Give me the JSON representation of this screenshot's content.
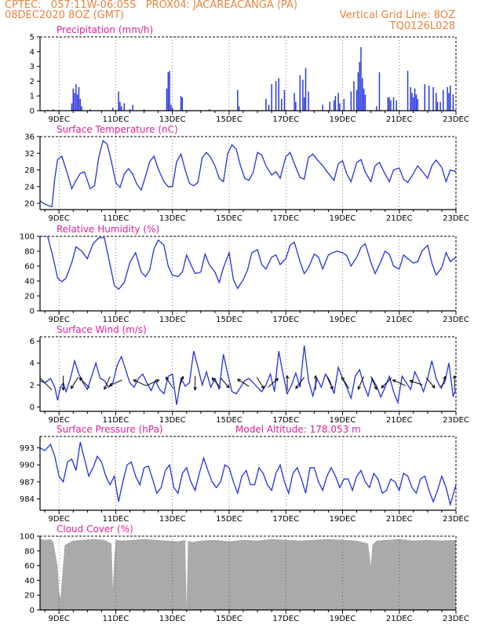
{
  "header": {
    "line1": "CPTEC:   057:11W-06:05S   PROX04: JACAREACANGA (PA)",
    "line2": "08DEC2020 8OZ (GMT)",
    "right2": "Vertical Grid Line: 8OZ",
    "right3": "TQ0126L028"
  },
  "colors": {
    "series": "#2233dd",
    "title": "#e0209c",
    "header": "#e8823c",
    "cloud": "#aaaaaa",
    "grid": "#444444"
  },
  "x_ticks": [
    "9DEC",
    "11DEC",
    "13DEC",
    "15DEC",
    "17DEC",
    "19DEC",
    "21DEC",
    "23DEC"
  ],
  "chart_data": [
    {
      "type": "bar",
      "title": "Precipitation (mm/h)",
      "x_range": [
        8.33,
        23.0
      ],
      "ylim": [
        0,
        5
      ],
      "yticks": [
        0,
        1,
        2,
        3,
        4,
        5
      ],
      "bar_width": 0.04,
      "x": [
        8.6,
        8.8,
        9.45,
        9.5,
        9.55,
        9.6,
        9.65,
        9.7,
        9.75,
        9.8,
        10.1,
        10.9,
        11.1,
        11.15,
        11.2,
        11.3,
        11.5,
        11.6,
        12.0,
        12.8,
        12.85,
        12.9,
        12.95,
        13.0,
        13.3,
        13.35,
        14.3,
        15.3,
        15.35,
        16.3,
        16.4,
        16.5,
        16.65,
        16.75,
        16.85,
        16.95,
        17.3,
        17.35,
        17.5,
        17.6,
        17.65,
        17.7,
        17.8,
        18.3,
        18.55,
        18.7,
        18.75,
        18.85,
        18.9,
        19.05,
        19.3,
        19.4,
        19.5,
        19.55,
        19.6,
        19.65,
        19.7,
        19.75,
        19.8,
        20.2,
        20.3,
        20.6,
        20.65,
        20.7,
        20.8,
        20.9,
        21.3,
        21.4,
        21.45,
        21.5,
        21.55,
        21.6,
        21.65,
        21.9,
        22.05,
        22.2,
        22.3,
        22.35,
        22.45,
        22.55,
        22.7,
        22.75,
        22.8,
        22.9
      ],
      "values": [
        0.05,
        0.1,
        0.5,
        1.5,
        1.2,
        1.8,
        1.1,
        1.6,
        0.8,
        0.3,
        0.1,
        0.2,
        1.3,
        0.6,
        0.3,
        0.5,
        0.1,
        0.4,
        0.1,
        1.5,
        2.6,
        2.7,
        0.4,
        0.2,
        1.0,
        0.9,
        0.1,
        1.4,
        0.3,
        0.8,
        0.4,
        1.8,
        2.0,
        2.2,
        0.8,
        1.4,
        1.2,
        0.6,
        2.4,
        2.1,
        0.9,
        2.9,
        1.3,
        0.4,
        0.6,
        0.7,
        1.0,
        1.2,
        0.5,
        0.8,
        1.3,
        2.0,
        1.4,
        2.6,
        3.3,
        4.3,
        2.2,
        1.5,
        1.1,
        0.3,
        2.6,
        0.9,
        0.9,
        0.7,
        0.9,
        0.7,
        2.7,
        1.6,
        1.2,
        0.9,
        1.5,
        1.1,
        0.8,
        1.8,
        1.7,
        1.6,
        1.2,
        0.6,
        0.6,
        1.4,
        1.6,
        1.2,
        1.7,
        1.1
      ]
    },
    {
      "type": "line",
      "title": "Surface Temperature (nC)",
      "x_range": [
        8.33,
        23.0
      ],
      "ylim": [
        18.5,
        36
      ],
      "yticks": [
        20,
        24,
        28,
        32,
        36
      ],
      "x": [
        8.33,
        8.45,
        8.6,
        8.75,
        8.85,
        8.95,
        9.1,
        9.3,
        9.45,
        9.6,
        9.75,
        9.9,
        10.1,
        10.25,
        10.4,
        10.55,
        10.7,
        10.85,
        11.0,
        11.15,
        11.3,
        11.45,
        11.6,
        11.75,
        11.9,
        12.05,
        12.2,
        12.35,
        12.5,
        12.7,
        12.85,
        13.0,
        13.15,
        13.3,
        13.45,
        13.6,
        13.75,
        13.9,
        14.05,
        14.2,
        14.35,
        14.5,
        14.65,
        14.8,
        14.95,
        15.1,
        15.25,
        15.4,
        15.55,
        15.7,
        15.85,
        16.0,
        16.15,
        16.3,
        16.5,
        16.65,
        16.8,
        17.0,
        17.15,
        17.3,
        17.5,
        17.65,
        17.8,
        17.95,
        18.1,
        18.3,
        18.5,
        18.7,
        18.85,
        19.0,
        19.15,
        19.3,
        19.5,
        19.65,
        19.8,
        20.0,
        20.15,
        20.3,
        20.5,
        20.65,
        20.8,
        21.0,
        21.15,
        21.3,
        21.5,
        21.65,
        21.8,
        22.0,
        22.15,
        22.3,
        22.5,
        22.65,
        22.8,
        23.0
      ],
      "values": [
        20.6,
        20.0,
        19.5,
        19.2,
        26.0,
        30.5,
        31.3,
        27.0,
        23.5,
        25.5,
        27.2,
        27.5,
        23.5,
        24.2,
        31.0,
        35.0,
        34.2,
        30.0,
        25.0,
        23.8,
        27.0,
        28.3,
        27.0,
        24.5,
        23.2,
        26.5,
        30.0,
        31.3,
        28.2,
        25.2,
        24.0,
        24.0,
        30.0,
        31.8,
        28.0,
        24.8,
        24.2,
        25.0,
        31.0,
        32.2,
        31.0,
        29.0,
        26.0,
        25.2,
        32.0,
        34.0,
        33.0,
        29.0,
        26.0,
        25.5,
        27.5,
        32.2,
        31.6,
        29.0,
        26.8,
        27.6,
        26.0,
        31.2,
        32.2,
        29.5,
        26.2,
        25.8,
        31.0,
        31.8,
        30.5,
        29.0,
        27.2,
        25.5,
        29.5,
        30.2,
        27.0,
        25.2,
        29.8,
        30.5,
        27.5,
        25.2,
        29.0,
        29.8,
        27.0,
        25.2,
        28.0,
        28.5,
        25.8,
        25.0,
        27.2,
        29.0,
        27.8,
        26.0,
        29.0,
        30.4,
        28.6,
        25.2,
        28.0,
        27.6
      ]
    },
    {
      "type": "line",
      "title": "Relative Humidity (%)",
      "x_range": [
        8.33,
        23.0
      ],
      "ylim": [
        0,
        100
      ],
      "yticks": [
        0,
        20,
        40,
        60,
        80,
        100
      ],
      "x": [
        8.33,
        8.6,
        8.8,
        8.95,
        9.1,
        9.25,
        9.45,
        9.6,
        9.8,
        10.0,
        10.2,
        10.4,
        10.6,
        10.8,
        10.95,
        11.1,
        11.3,
        11.5,
        11.7,
        11.9,
        12.05,
        12.2,
        12.35,
        12.5,
        12.7,
        12.85,
        13.0,
        13.2,
        13.35,
        13.5,
        13.65,
        13.8,
        14.0,
        14.15,
        14.3,
        14.5,
        14.65,
        14.8,
        15.0,
        15.15,
        15.3,
        15.5,
        15.65,
        15.8,
        16.0,
        16.15,
        16.3,
        16.5,
        16.65,
        16.8,
        17.0,
        17.15,
        17.3,
        17.5,
        17.65,
        17.8,
        18.0,
        18.15,
        18.3,
        18.5,
        18.65,
        18.8,
        19.0,
        19.15,
        19.3,
        19.5,
        19.65,
        19.8,
        20.0,
        20.15,
        20.3,
        20.5,
        20.65,
        20.8,
        21.0,
        21.15,
        21.3,
        21.5,
        21.65,
        21.8,
        22.0,
        22.15,
        22.3,
        22.5,
        22.65,
        22.8,
        23.0
      ],
      "values": [
        100,
        100,
        70,
        44,
        39,
        44,
        65,
        86,
        80,
        70,
        90,
        98,
        98,
        62,
        34,
        29,
        38,
        65,
        78,
        52,
        46,
        55,
        83,
        95,
        88,
        60,
        48,
        46,
        52,
        75,
        62,
        50,
        52,
        76,
        62,
        52,
        38,
        58,
        78,
        42,
        30,
        42,
        55,
        78,
        82,
        62,
        56,
        72,
        75,
        62,
        70,
        88,
        92,
        66,
        50,
        58,
        76,
        72,
        56,
        75,
        78,
        80,
        78,
        74,
        60,
        72,
        85,
        90,
        65,
        50,
        62,
        80,
        76,
        60,
        56,
        75,
        70,
        64,
        66,
        80,
        88,
        64,
        48,
        58,
        78,
        66,
        72
      ]
    },
    {
      "type": "line",
      "title": "Surface Wind (m/s)",
      "x_range": [
        8.33,
        23.0
      ],
      "ylim": [
        -0.4,
        6.4
      ],
      "yticks": [
        0,
        2,
        4,
        6
      ],
      "x": [
        8.33,
        8.5,
        8.7,
        8.85,
        8.95,
        9.05,
        9.15,
        9.25,
        9.4,
        9.55,
        9.7,
        9.85,
        10.0,
        10.15,
        10.3,
        10.45,
        10.6,
        10.75,
        10.9,
        11.05,
        11.2,
        11.35,
        11.5,
        11.65,
        11.8,
        11.95,
        12.1,
        12.25,
        12.4,
        12.55,
        12.7,
        12.85,
        13.0,
        13.15,
        13.3,
        13.45,
        13.6,
        13.75,
        13.9,
        14.05,
        14.2,
        14.35,
        14.5,
        14.65,
        14.8,
        14.95,
        15.1,
        15.25,
        15.4,
        15.55,
        15.7,
        15.85,
        16.0,
        16.15,
        16.3,
        16.45,
        16.6,
        16.75,
        16.9,
        17.05,
        17.2,
        17.35,
        17.5,
        17.65,
        17.8,
        17.95,
        18.1,
        18.25,
        18.4,
        18.55,
        18.7,
        18.85,
        19.0,
        19.15,
        19.3,
        19.45,
        19.6,
        19.75,
        19.9,
        20.05,
        20.2,
        20.35,
        20.5,
        20.65,
        20.8,
        20.95,
        21.1,
        21.25,
        21.4,
        21.55,
        21.7,
        21.85,
        22.0,
        22.15,
        22.3,
        22.45,
        22.6,
        22.75,
        22.9,
        23.0
      ],
      "values": [
        2.4,
        2.2,
        2.6,
        1.8,
        0.6,
        1.8,
        2.2,
        1.4,
        2.6,
        4.2,
        3.0,
        2.2,
        1.6,
        2.8,
        4.0,
        2.6,
        2.4,
        1.8,
        2.2,
        3.8,
        4.6,
        3.4,
        2.2,
        1.8,
        2.6,
        3.0,
        2.2,
        1.5,
        2.4,
        1.6,
        1.2,
        2.8,
        3.0,
        0.2,
        2.6,
        1.9,
        2.2,
        5.1,
        3.6,
        2.0,
        3.2,
        1.8,
        2.6,
        1.6,
        4.8,
        3.0,
        1.4,
        1.2,
        1.8,
        2.4,
        2.6,
        2.2,
        1.8,
        1.4,
        2.0,
        3.0,
        1.4,
        5.1,
        3.0,
        1.2,
        2.0,
        3.1,
        1.8,
        5.6,
        2.4,
        1.0,
        2.6,
        1.8,
        3.0,
        2.4,
        1.2,
        3.6,
        2.6,
        1.8,
        0.8,
        2.8,
        3.4,
        2.0,
        1.0,
        2.6,
        1.9,
        0.9,
        1.8,
        2.8,
        1.4,
        0.4,
        2.8,
        2.2,
        1.6,
        3.2,
        2.4,
        1.4,
        2.6,
        4.2,
        2.6,
        1.8,
        2.2,
        4.0,
        1.0,
        1.6
      ]
    },
    {
      "type": "line",
      "title": "Surface Pressure (hPa)",
      "annotation": "Model Altitude: 178.053 m",
      "x_range": [
        8.33,
        23.0
      ],
      "ylim": [
        982,
        995
      ],
      "yticks": [
        984,
        987,
        990,
        993
      ],
      "x": [
        8.33,
        8.5,
        8.7,
        8.85,
        9.0,
        9.15,
        9.3,
        9.45,
        9.6,
        9.75,
        9.9,
        10.05,
        10.2,
        10.35,
        10.5,
        10.65,
        10.8,
        10.95,
        11.1,
        11.25,
        11.4,
        11.55,
        11.7,
        11.85,
        12.0,
        12.15,
        12.3,
        12.45,
        12.6,
        12.75,
        12.9,
        13.05,
        13.2,
        13.35,
        13.5,
        13.65,
        13.8,
        13.95,
        14.1,
        14.25,
        14.4,
        14.55,
        14.7,
        14.85,
        15.0,
        15.15,
        15.3,
        15.45,
        15.6,
        15.75,
        15.9,
        16.05,
        16.2,
        16.35,
        16.5,
        16.65,
        16.8,
        16.95,
        17.1,
        17.25,
        17.4,
        17.55,
        17.7,
        17.85,
        18.0,
        18.15,
        18.3,
        18.45,
        18.6,
        18.75,
        18.9,
        19.05,
        19.2,
        19.35,
        19.5,
        19.65,
        19.8,
        19.95,
        20.1,
        20.25,
        20.4,
        20.55,
        20.7,
        20.85,
        21.0,
        21.15,
        21.3,
        21.45,
        21.6,
        21.75,
        21.9,
        22.05,
        22.2,
        22.35,
        22.5,
        22.65,
        22.8,
        23.0
      ],
      "values": [
        993.0,
        992.5,
        993.6,
        991.5,
        988.0,
        987.0,
        990.5,
        991.0,
        989.0,
        994.0,
        991.0,
        988.0,
        989.5,
        991.5,
        990.5,
        988.0,
        986.5,
        988.0,
        983.5,
        987.0,
        990.0,
        990.5,
        988.0,
        986.5,
        989.5,
        989.8,
        987.5,
        985.0,
        986.0,
        989.0,
        990.0,
        986.0,
        985.0,
        988.5,
        989.5,
        987.0,
        985.5,
        988.5,
        991.2,
        989.0,
        987.0,
        986.0,
        987.0,
        990.0,
        989.5,
        987.0,
        985.0,
        988.0,
        989.0,
        986.5,
        986.5,
        989.5,
        988.5,
        986.5,
        985.5,
        988.5,
        990.0,
        987.0,
        985.0,
        988.5,
        989.5,
        987.5,
        985.0,
        989.5,
        989.5,
        987.0,
        985.5,
        988.0,
        989.5,
        988.0,
        986.0,
        987.5,
        987.5,
        985.5,
        988.0,
        989.0,
        987.0,
        986.0,
        988.5,
        987.5,
        985.0,
        985.5,
        987.5,
        987.0,
        985.5,
        988.5,
        988.0,
        986.0,
        985.0,
        987.5,
        988.0,
        985.5,
        983.5,
        985.5,
        988.0,
        986.0,
        983.0,
        986.5
      ]
    },
    {
      "type": "area",
      "title": "Cloud Cover (%)",
      "x_range": [
        8.33,
        23.0
      ],
      "ylim": [
        0,
        100
      ],
      "yticks": [
        0,
        20,
        40,
        60,
        80,
        100
      ],
      "x": [
        8.33,
        8.5,
        8.7,
        8.8,
        8.95,
        9.0,
        9.05,
        9.1,
        9.2,
        9.3,
        9.5,
        9.8,
        10.2,
        10.6,
        10.85,
        10.9,
        10.95,
        11.0,
        11.2,
        11.6,
        12.0,
        12.4,
        12.8,
        13.2,
        13.45,
        13.5,
        13.55,
        13.7,
        14.0,
        14.5,
        15.0,
        15.5,
        16.0,
        16.5,
        17.0,
        17.5,
        18.0,
        18.5,
        19.0,
        19.5,
        19.9,
        20.0,
        20.05,
        20.2,
        20.6,
        21.0,
        21.5,
        22.0,
        22.5,
        23.0
      ],
      "values": [
        96,
        95,
        96,
        92,
        60,
        25,
        15,
        40,
        88,
        90,
        94,
        95,
        96,
        95,
        90,
        30,
        70,
        95,
        94,
        95,
        96,
        95,
        94,
        93,
        95,
        5,
        94,
        92,
        94,
        95,
        93,
        95,
        94,
        96,
        95,
        94,
        95,
        96,
        95,
        94,
        90,
        60,
        88,
        94,
        95,
        96,
        94,
        95,
        94,
        95
      ]
    }
  ],
  "wind_arrows": [
    {
      "x": 8.5,
      "dx": -1,
      "dy": 1
    },
    {
      "x": 9.15,
      "dx": 0,
      "dy": -1
    },
    {
      "x": 9.55,
      "dx": -0.5,
      "dy": -0.8
    },
    {
      "x": 9.9,
      "dx": -0.7,
      "dy": 0.7
    },
    {
      "x": 10.7,
      "dx": -0.4,
      "dy": -0.9
    },
    {
      "x": 11.0,
      "dx": -0.9,
      "dy": -0.4
    },
    {
      "x": 11.85,
      "dx": -0.9,
      "dy": 0.4
    },
    {
      "x": 12.3,
      "dx": 0.9,
      "dy": 0.4
    },
    {
      "x": 12.9,
      "dx": -0.5,
      "dy": 0.8
    },
    {
      "x": 13.3,
      "dx": 0.3,
      "dy": 0.9
    },
    {
      "x": 13.8,
      "dx": 0,
      "dy": -1
    },
    {
      "x": 14.55,
      "dx": -0.6,
      "dy": 0.7
    },
    {
      "x": 14.85,
      "dx": 0.6,
      "dy": -0.7
    },
    {
      "x": 15.5,
      "dx": -0.8,
      "dy": 0.5
    },
    {
      "x": 16.1,
      "dx": 0.5,
      "dy": -0.8
    },
    {
      "x": 16.55,
      "dx": 0.7,
      "dy": 0.6
    },
    {
      "x": 17.05,
      "dx": 0,
      "dy": 1
    },
    {
      "x": 17.5,
      "dx": -0.6,
      "dy": -0.8
    },
    {
      "x": 18.05,
      "dx": 0,
      "dy": 1
    },
    {
      "x": 18.55,
      "dx": 0.4,
      "dy": -0.9
    },
    {
      "x": 19.1,
      "dx": -0.5,
      "dy": 0.8
    },
    {
      "x": 19.65,
      "dx": -0.4,
      "dy": -0.9
    },
    {
      "x": 20.1,
      "dx": 0.4,
      "dy": -0.9
    },
    {
      "x": 20.55,
      "dx": -0.7,
      "dy": -0.7
    },
    {
      "x": 21.0,
      "dx": -0.9,
      "dy": 0.4
    },
    {
      "x": 21.6,
      "dx": -0.9,
      "dy": 0.3
    },
    {
      "x": 22.1,
      "dx": 0.6,
      "dy": -0.7
    },
    {
      "x": 22.55,
      "dx": 0.3,
      "dy": 0.9
    },
    {
      "x": 22.95,
      "dx": 0,
      "dy": 1
    }
  ]
}
